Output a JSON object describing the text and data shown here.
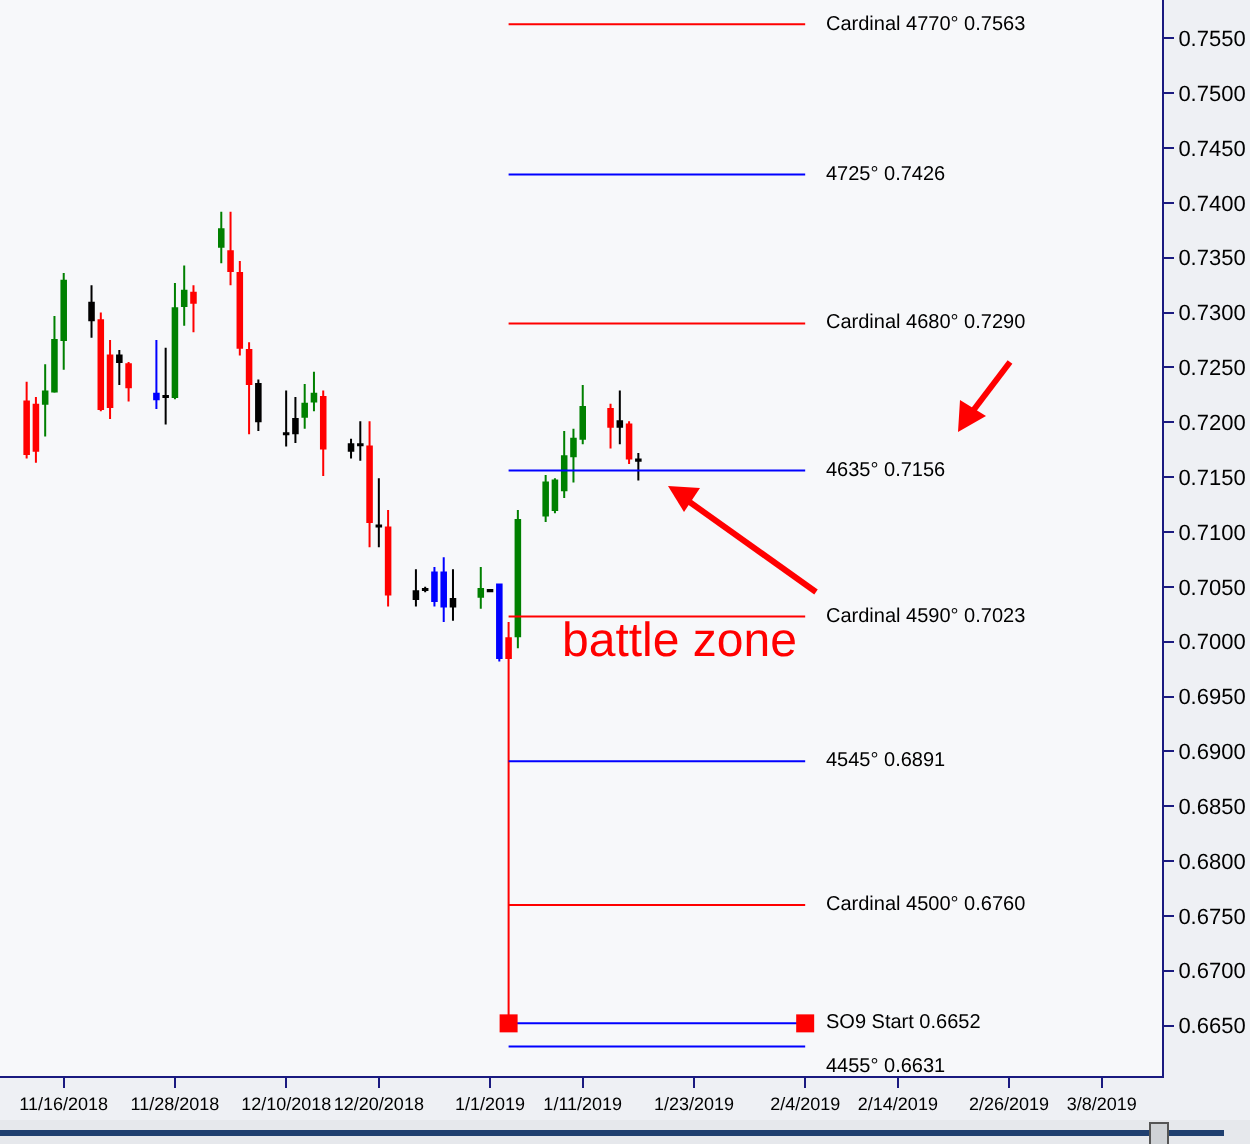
{
  "chart_data": {
    "type": "candlestick",
    "x": [
      "2018-11-12",
      "2018-11-13",
      "2018-11-14",
      "2018-11-15",
      "2018-11-16",
      "2018-11-19",
      "2018-11-20",
      "2018-11-21",
      "2018-11-22",
      "2018-11-23",
      "2018-11-26",
      "2018-11-27",
      "2018-11-28",
      "2018-11-29",
      "2018-11-30",
      "2018-12-03",
      "2018-12-04",
      "2018-12-05",
      "2018-12-06",
      "2018-12-07",
      "2018-12-10",
      "2018-12-11",
      "2018-12-12",
      "2018-12-13",
      "2018-12-14",
      "2018-12-17",
      "2018-12-18",
      "2018-12-19",
      "2018-12-20",
      "2018-12-21",
      "2018-12-24",
      "2018-12-25",
      "2018-12-26",
      "2018-12-27",
      "2018-12-28",
      "2018-12-31",
      "2019-01-01",
      "2019-01-02",
      "2019-01-03",
      "2019-01-04",
      "2019-01-07",
      "2019-01-08",
      "2019-01-09",
      "2019-01-10",
      "2019-01-11",
      "2019-01-14",
      "2019-01-15",
      "2019-01-16",
      "2019-01-17"
    ],
    "ohlc": [
      [
        0.7219,
        0.7237,
        0.7167,
        0.7171
      ],
      [
        0.7216,
        0.7223,
        0.7163,
        0.7174
      ],
      [
        0.7217,
        0.7253,
        0.7187,
        0.7228
      ],
      [
        0.7228,
        0.7297,
        0.7227,
        0.7275
      ],
      [
        0.7275,
        0.7336,
        0.7248,
        0.7329
      ],
      [
        0.7309,
        0.7325,
        0.7277,
        0.7293
      ],
      [
        0.7293,
        0.73,
        0.721,
        0.7212
      ],
      [
        0.7261,
        0.7275,
        0.7203,
        0.7214
      ],
      [
        0.7261,
        0.7266,
        0.7234,
        0.7255
      ],
      [
        0.7253,
        0.7255,
        0.7219,
        0.7232
      ],
      [
        0.7226,
        0.7275,
        0.7212,
        0.7221
      ],
      [
        0.7223,
        0.7268,
        0.7198,
        0.7224
      ],
      [
        0.7223,
        0.7327,
        0.7221,
        0.7304
      ],
      [
        0.7306,
        0.7343,
        0.7288,
        0.732
      ],
      [
        0.7318,
        0.7325,
        0.7282,
        0.7309
      ],
      [
        0.736,
        0.7392,
        0.7345,
        0.7376
      ],
      [
        0.7356,
        0.7392,
        0.7325,
        0.7338
      ],
      [
        0.7336,
        0.7347,
        0.7261,
        0.7268
      ],
      [
        0.7266,
        0.7273,
        0.7189,
        0.7235
      ],
      [
        0.7235,
        0.7239,
        0.7192,
        0.7201
      ],
      [
        0.7189,
        0.7229,
        0.7178,
        0.719
      ],
      [
        0.7203,
        0.7223,
        0.7181,
        0.719
      ],
      [
        0.7205,
        0.7235,
        0.7194,
        0.7217
      ],
      [
        0.7219,
        0.7246,
        0.721,
        0.7226
      ],
      [
        0.7223,
        0.7229,
        0.7151,
        0.7176
      ],
      [
        0.718,
        0.7185,
        0.7167,
        0.7174
      ],
      [
        0.718,
        0.7201,
        0.7165,
        0.7179
      ],
      [
        0.7178,
        0.7201,
        0.7086,
        0.7109
      ],
      [
        0.7106,
        0.7149,
        0.7086,
        0.7105
      ],
      [
        0.7104,
        0.712,
        0.7032,
        0.7043
      ],
      [
        0.7046,
        0.7066,
        0.7032,
        0.7039
      ],
      [
        0.7048,
        0.705,
        0.7045,
        0.7047
      ],
      [
        0.7063,
        0.7068,
        0.7032,
        0.7037
      ],
      [
        0.7063,
        0.7077,
        0.7018,
        0.7032
      ],
      [
        0.7039,
        0.7066,
        0.7019,
        0.7032
      ],
      [
        0.7041,
        0.7068,
        0.703,
        0.7048
      ],
      [
        0.7046,
        0.7048,
        0.7045,
        0.7047
      ],
      [
        0.7052,
        0.7053,
        0.6982,
        0.6985
      ],
      [
        0.7003,
        0.7018,
        0.6652,
        0.6985
      ],
      [
        0.7005,
        0.712,
        0.6994,
        0.7111
      ],
      [
        0.7115,
        0.7152,
        0.7109,
        0.7145
      ],
      [
        0.712,
        0.7149,
        0.7117,
        0.7147
      ],
      [
        0.7138,
        0.7192,
        0.7131,
        0.7169
      ],
      [
        0.7169,
        0.7194,
        0.7145,
        0.7185
      ],
      [
        0.7185,
        0.7234,
        0.718,
        0.7214
      ],
      [
        0.7212,
        0.7217,
        0.7176,
        0.7196
      ],
      [
        0.7201,
        0.7229,
        0.718,
        0.7196
      ],
      [
        0.7198,
        0.7201,
        0.7162,
        0.7167
      ],
      [
        0.7165,
        0.7172,
        0.7147,
        0.7166
      ]
    ],
    "colors": [
      "#ff0000",
      "#ff0000",
      "#008000",
      "#008000",
      "#008000",
      "#000000",
      "#ff0000",
      "#ff0000",
      "#000000",
      "#ff0000",
      "#0000ff",
      "#000000",
      "#008000",
      "#008000",
      "#ff0000",
      "#008000",
      "#ff0000",
      "#ff0000",
      "#ff0000",
      "#000000",
      "#000000",
      "#000000",
      "#008000",
      "#008000",
      "#ff0000",
      "#000000",
      "#000000",
      "#ff0000",
      "#000000",
      "#ff0000",
      "#000000",
      "#000000",
      "#0000ff",
      "#0000ff",
      "#000000",
      "#008000",
      "#000000",
      "#0000ff",
      "#ff0000",
      "#008000",
      "#008000",
      "#008000",
      "#008000",
      "#008000",
      "#008000",
      "#ff0000",
      "#000000",
      "#ff0000",
      "#000000"
    ],
    "series": [
      {
        "type": "line",
        "name": "Cardinal 4770° 0.7563",
        "color": "#ff0000",
        "x": [
          "2019-01-03",
          "2019-02-04"
        ],
        "values": [
          0.7563,
          0.7563
        ]
      },
      {
        "type": "line",
        "name": "4725° 0.7426",
        "color": "#0000ff",
        "x": [
          "2019-01-03",
          "2019-02-04"
        ],
        "values": [
          0.7426,
          0.7426
        ]
      },
      {
        "type": "line",
        "name": "Cardinal 4680° 0.7290",
        "color": "#ff0000",
        "x": [
          "2019-01-03",
          "2019-02-04"
        ],
        "values": [
          0.729,
          0.729
        ]
      },
      {
        "type": "line",
        "name": "4635° 0.7156",
        "color": "#0000ff",
        "x": [
          "2019-01-03",
          "2019-02-04"
        ],
        "values": [
          0.7156,
          0.7156
        ]
      },
      {
        "type": "line",
        "name": "Cardinal 4590° 0.7023",
        "color": "#ff0000",
        "x": [
          "2019-01-03",
          "2019-02-04"
        ],
        "values": [
          0.7023,
          0.7023
        ]
      },
      {
        "type": "line",
        "name": "4545° 0.6891",
        "color": "#0000ff",
        "x": [
          "2019-01-03",
          "2019-02-04"
        ],
        "values": [
          0.6891,
          0.6891
        ]
      },
      {
        "type": "line",
        "name": "Cardinal 4500° 0.6760",
        "color": "#ff0000",
        "x": [
          "2019-01-03",
          "2019-02-04"
        ],
        "values": [
          0.676,
          0.676
        ]
      },
      {
        "type": "line",
        "name": "SO9 Start 0.6652",
        "color": "#0000ff",
        "marker": "square",
        "colors": [
          "#ff0000",
          "#ff0000"
        ],
        "x": [
          "2019-01-03",
          "2019-02-04"
        ],
        "values": [
          0.6652,
          0.6652
        ]
      },
      {
        "type": "line",
        "name": "4455° 0.6631",
        "color": "#0000ff",
        "x": [
          "2019-01-03",
          "2019-02-04"
        ],
        "values": [
          0.6631,
          0.6631
        ]
      }
    ],
    "annotations": [
      "battle zone"
    ],
    "xlim": [
      "2018-11-09T03:00",
      "2019-03-14T12:00"
    ],
    "xticks": [
      {
        "value": "2018-11-16",
        "label": "11/16/2018"
      },
      {
        "value": "2018-11-28",
        "label": "11/28/2018"
      },
      {
        "value": "2018-12-10",
        "label": "12/10/2018"
      },
      {
        "value": "2018-12-20",
        "label": "12/20/2018"
      },
      {
        "value": "2019-01-01",
        "label": "1/1/2019"
      },
      {
        "value": "2019-01-11",
        "label": "1/11/2019"
      },
      {
        "value": "2019-01-23",
        "label": "1/23/2019"
      },
      {
        "value": "2019-02-04",
        "label": "2/4/2019"
      },
      {
        "value": "2019-02-14",
        "label": "2/14/2019"
      },
      {
        "value": "2019-02-26",
        "label": "2/26/2019"
      },
      {
        "value": "2019-03-08",
        "label": "3/8/2019"
      }
    ],
    "ylim": [
      0.6604,
      0.7585
    ],
    "yticks": [
      {
        "value": 0.665,
        "label": "0.6650"
      },
      {
        "value": 0.67,
        "label": "0.6700"
      },
      {
        "value": 0.675,
        "label": "0.6750"
      },
      {
        "value": 0.68,
        "label": "0.6800"
      },
      {
        "value": 0.685,
        "label": "0.6850"
      },
      {
        "value": 0.69,
        "label": "0.6900"
      },
      {
        "value": 0.695,
        "label": "0.6950"
      },
      {
        "value": 0.7,
        "label": "0.7000"
      },
      {
        "value": 0.705,
        "label": "0.7050"
      },
      {
        "value": 0.71,
        "label": "0.7100"
      },
      {
        "value": 0.715,
        "label": "0.7150"
      },
      {
        "value": 0.72,
        "label": "0.7200"
      },
      {
        "value": 0.725,
        "label": "0.7250"
      },
      {
        "value": 0.73,
        "label": "0.7300"
      },
      {
        "value": 0.735,
        "label": "0.7350"
      },
      {
        "value": 0.74,
        "label": "0.7400"
      },
      {
        "value": 0.745,
        "label": "0.7450"
      },
      {
        "value": 0.75,
        "label": "0.7500"
      },
      {
        "value": 0.755,
        "label": "0.7550"
      }
    ],
    "grid": false,
    "legend": false
  }
}
